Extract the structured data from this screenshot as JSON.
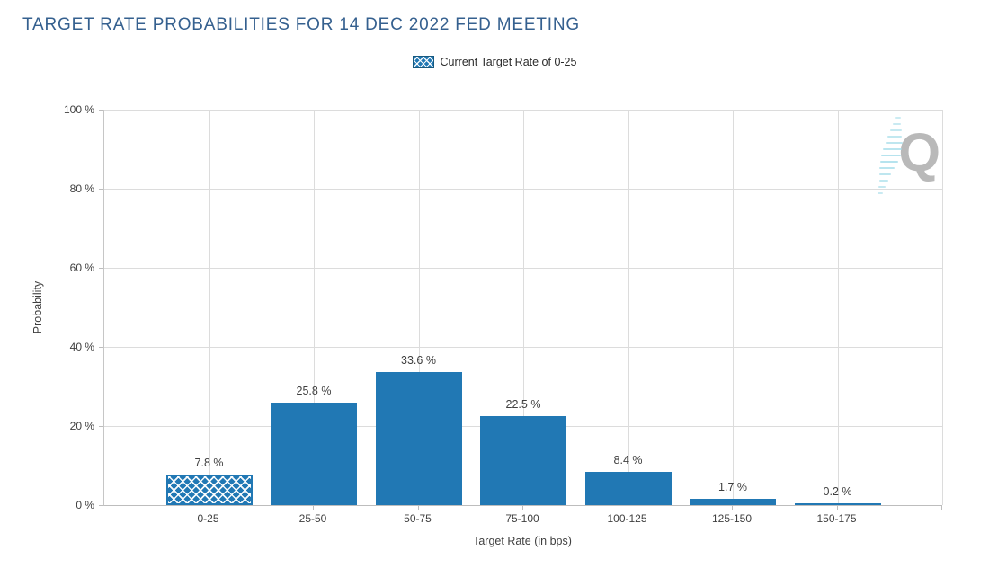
{
  "page_title": "TARGET RATE PROBABILITIES FOR 14 DEC 2022 FED MEETING",
  "legend": {
    "label": "Current Target Rate of 0-25",
    "swatch_style": "crosshatch"
  },
  "watermark": {
    "letter": "Q"
  },
  "chart_data": {
    "type": "bar",
    "title": "TARGET RATE PROBABILITIES FOR 14 DEC 2022 FED MEETING",
    "categories": [
      "0-25",
      "25-50",
      "50-75",
      "75-100",
      "100-125",
      "125-150",
      "150-175"
    ],
    "values": [
      7.8,
      25.8,
      33.6,
      22.5,
      8.4,
      1.7,
      0.2
    ],
    "value_labels": [
      "7.8 %",
      "25.8 %",
      "33.6 %",
      "22.5 %",
      "8.4 %",
      "1.7 %",
      "0.2 %"
    ],
    "highlighted_category": "0-25",
    "highlight_index": 0,
    "highlight_style": "crosshatch",
    "legend_entries": [
      "Current Target Rate of 0-25"
    ],
    "legend_position": "top-center",
    "xlabel": "Target Rate (in bps)",
    "ylabel": "Probability",
    "ylim": [
      0,
      100
    ],
    "yticks": [
      0,
      20,
      40,
      60,
      80,
      100
    ],
    "ytick_labels": [
      "0 %",
      "20 %",
      "40 %",
      "60 %",
      "80 %",
      "100 %"
    ],
    "grid": true,
    "colors": {
      "bar": "#2178b4",
      "title": "#35608f",
      "tick_label": "#3f3f3f",
      "gridline": "#dcdcdc",
      "axis_line": "#bdbdbd",
      "watermark_letter": "#b9b9b9",
      "watermark_hatch": "#a3dce9"
    }
  }
}
